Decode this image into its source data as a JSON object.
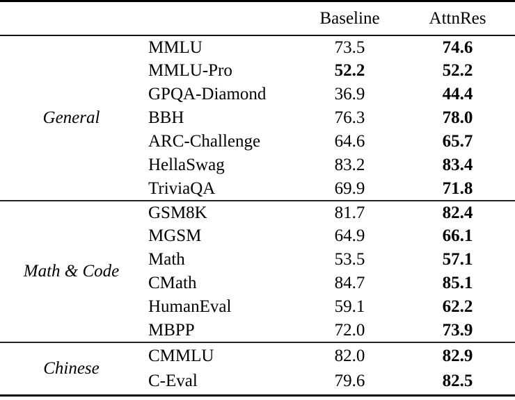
{
  "table": {
    "header": {
      "baseline": "Baseline",
      "attnres": "AttnRes"
    },
    "sections": [
      {
        "group": "General",
        "rows": [
          {
            "name": "MMLU",
            "baseline": "73.5",
            "baseline_bold": false,
            "attnres": "74.6"
          },
          {
            "name": "MMLU-Pro",
            "baseline": "52.2",
            "baseline_bold": true,
            "attnres": "52.2"
          },
          {
            "name": "GPQA-Diamond",
            "baseline": "36.9",
            "baseline_bold": false,
            "attnres": "44.4"
          },
          {
            "name": "BBH",
            "baseline": "76.3",
            "baseline_bold": false,
            "attnres": "78.0"
          },
          {
            "name": "ARC-Challenge",
            "baseline": "64.6",
            "baseline_bold": false,
            "attnres": "65.7"
          },
          {
            "name": "HellaSwag",
            "baseline": "83.2",
            "baseline_bold": false,
            "attnres": "83.4"
          },
          {
            "name": "TriviaQA",
            "baseline": "69.9",
            "baseline_bold": false,
            "attnres": "71.8"
          }
        ]
      },
      {
        "group": "Math & Code",
        "rows": [
          {
            "name": "GSM8K",
            "baseline": "81.7",
            "baseline_bold": false,
            "attnres": "82.4"
          },
          {
            "name": "MGSM",
            "baseline": "64.9",
            "baseline_bold": false,
            "attnres": "66.1"
          },
          {
            "name": "Math",
            "baseline": "53.5",
            "baseline_bold": false,
            "attnres": "57.1"
          },
          {
            "name": "CMath",
            "baseline": "84.7",
            "baseline_bold": false,
            "attnres": "85.1"
          },
          {
            "name": "HumanEval",
            "baseline": "59.1",
            "baseline_bold": false,
            "attnres": "62.2"
          },
          {
            "name": "MBPP",
            "baseline": "72.0",
            "baseline_bold": false,
            "attnres": "73.9"
          }
        ]
      },
      {
        "group": "Chinese",
        "rows": [
          {
            "name": "CMMLU",
            "baseline": "82.0",
            "baseline_bold": false,
            "attnres": "82.9"
          },
          {
            "name": "C-Eval",
            "baseline": "79.6",
            "baseline_bold": false,
            "attnres": "82.5"
          }
        ]
      }
    ],
    "colors": {
      "text": "#000000",
      "rule_heavy": "#000000",
      "rule_light": "#222222",
      "background": "#ffffff"
    }
  }
}
